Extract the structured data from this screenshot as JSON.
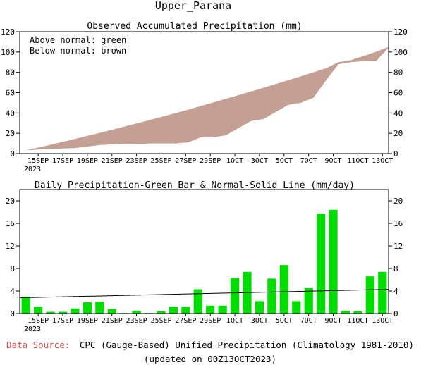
{
  "page_title": "Upper_Parana",
  "footer": {
    "source_label": "Data Source:",
    "source_text": "CPC (Gauge-Based) Unified Precipitation (Climatology 1981-2010)",
    "updated": "(updated on 00Z13OCT2023)"
  },
  "colors": {
    "above_normal": "#00cc00",
    "below_normal": "#c4a094",
    "daily_bar": "#00dd00",
    "source_label": "#e05050"
  },
  "chart_data": [
    {
      "type": "area",
      "title": "Observed Accumulated Precipitation (mm)",
      "legend": [
        "Above normal: green",
        "Below normal: brown"
      ],
      "x_ticks": [
        "15SEP",
        "17SEP",
        "19SEP",
        "21SEP",
        "23SEP",
        "25SEP",
        "27SEP",
        "29SEP",
        "1OCT",
        "3OCT",
        "5OCT",
        "7OCT",
        "9OCT",
        "11OCT",
        "13OCT"
      ],
      "x_year_label": "2023",
      "y_ticks": [
        0,
        20,
        40,
        60,
        80,
        100,
        120
      ],
      "ylim": [
        0,
        120
      ],
      "days": [
        "14SEP",
        "15SEP",
        "16SEP",
        "17SEP",
        "18SEP",
        "19SEP",
        "20SEP",
        "21SEP",
        "22SEP",
        "23SEP",
        "24SEP",
        "25SEP",
        "26SEP",
        "27SEP",
        "28SEP",
        "29SEP",
        "30SEP",
        "1OCT",
        "2OCT",
        "3OCT",
        "4OCT",
        "5OCT",
        "6OCT",
        "7OCT",
        "8OCT",
        "9OCT",
        "10OCT",
        "11OCT",
        "12OCT",
        "13OCT"
      ],
      "series": [
        {
          "name": "Observed",
          "values": [
            3,
            4,
            4.5,
            5,
            5.5,
            7,
            8.5,
            9,
            9.5,
            9.5,
            10,
            10,
            10,
            11,
            16,
            16,
            18,
            25,
            32,
            34,
            41,
            48,
            50,
            55,
            72,
            90,
            90,
            91,
            91,
            105
          ]
        },
        {
          "name": "Normal",
          "values": [
            3,
            5.8,
            8.7,
            11.6,
            14.6,
            17.6,
            20.6,
            23.7,
            26.9,
            30.1,
            33.3,
            36.6,
            39.9,
            43.3,
            46.8,
            50.3,
            53.9,
            57.5,
            61.1,
            64.8,
            68.5,
            72.3,
            76.1,
            80,
            84,
            88,
            92,
            96.1,
            100.2,
            104.3
          ]
        }
      ]
    },
    {
      "type": "bar",
      "title": "Daily Precipitation-Green Bar & Normal-Solid Line (mm/day)",
      "x_ticks": [
        "15SEP",
        "17SEP",
        "19SEP",
        "21SEP",
        "23SEP",
        "25SEP",
        "27SEP",
        "29SEP",
        "1OCT",
        "3OCT",
        "5OCT",
        "7OCT",
        "9OCT",
        "11OCT",
        "13OCT"
      ],
      "x_year_label": "2023",
      "y_ticks": [
        0,
        4,
        8,
        12,
        16,
        20
      ],
      "ylim": [
        0,
        22
      ],
      "categories": [
        "14SEP",
        "15SEP",
        "16SEP",
        "17SEP",
        "18SEP",
        "19SEP",
        "20SEP",
        "21SEP",
        "22SEP",
        "23SEP",
        "24SEP",
        "25SEP",
        "26SEP",
        "27SEP",
        "28SEP",
        "29SEP",
        "30SEP",
        "1OCT",
        "2OCT",
        "3OCT",
        "4OCT",
        "5OCT",
        "6OCT",
        "7OCT",
        "8OCT",
        "9OCT",
        "10OCT",
        "11OCT",
        "12OCT",
        "13OCT"
      ],
      "values": [
        3,
        1.2,
        0.3,
        0.3,
        0.9,
        2,
        2.1,
        0.8,
        0.1,
        0.5,
        0.1,
        0.4,
        1.2,
        1.2,
        4.3,
        1.4,
        1.4,
        6.3,
        7.4,
        2.2,
        6.2,
        8.6,
        2.2,
        4.5,
        17.7,
        18.4,
        0.5,
        0.4,
        6.6,
        7.4
      ],
      "normal_line": {
        "start": 2.8,
        "end": 4.3
      }
    }
  ]
}
